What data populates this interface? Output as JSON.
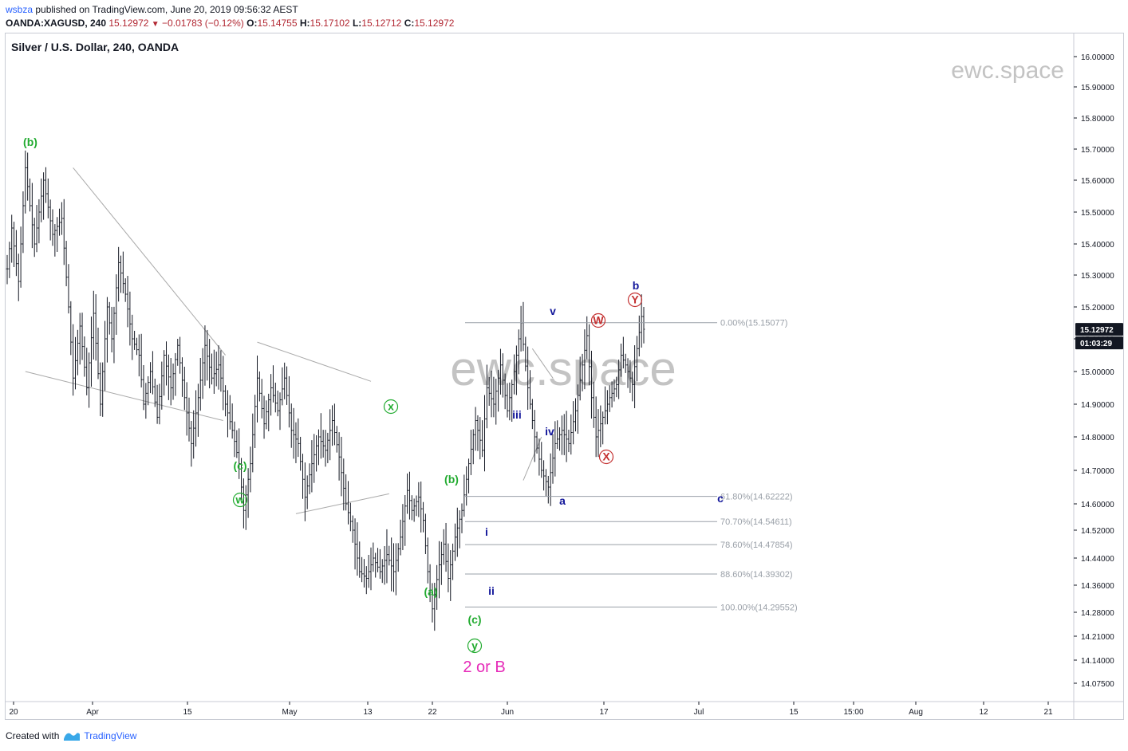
{
  "publish": {
    "user": "wsbza",
    "text": "published on TradingView.com, June 20, 2019 09:56:32 AEST"
  },
  "ohlc": {
    "symbol": "OANDA:XAGUSD, 240",
    "last": "15.12972",
    "change": "−0.01783 (−0.12%)",
    "o_label": "O:",
    "o": "15.14755",
    "h_label": "H:",
    "h": "15.17102",
    "l_label": "L:",
    "l": "15.12712",
    "c_label": "C:",
    "c": "15.12972"
  },
  "footer": {
    "created_with": "Created with",
    "brand": "TradingView"
  },
  "colors": {
    "bars": "#131722",
    "green": "#22ab30",
    "navy": "#12169a",
    "red": "#c43131",
    "magenta": "#e62ab8",
    "fib": "#9aa0a8",
    "tag_bg": "#131722",
    "trend": "#a9a9a9",
    "watermark": "#c3c3c3"
  },
  "chart_data": {
    "type": "bar",
    "title": "Silver / U.S. Dollar, 240, OANDA",
    "watermark_small": "ewc.space",
    "watermark_big": "ewc.space",
    "ylim": [
      14.02,
      16.06
    ],
    "y_ticks": [
      "16.00000",
      "15.90000",
      "15.80000",
      "15.70000",
      "15.60000",
      "15.50000",
      "15.40000",
      "15.30000",
      "15.20000",
      "15.10000",
      "15.00000",
      "14.90000",
      "14.80000",
      "14.70000",
      "14.60000",
      "14.52000",
      "14.44000",
      "14.36000",
      "14.28000",
      "14.21000",
      "14.14000",
      "14.07500"
    ],
    "x_ticks": [
      "20",
      "Apr",
      "15",
      "May",
      "13",
      "22",
      "Jun",
      "17",
      "Jul",
      "15",
      "15:00",
      "Aug",
      "12",
      "21"
    ],
    "last_price_tag": "15.12972",
    "countdown_tag": "01:03:29",
    "fib_levels": [
      {
        "label": "0.00%(15.15077)",
        "value": 15.15077
      },
      {
        "label": "61.80%(14.62222)",
        "value": 14.62222
      },
      {
        "label": "70.70%(14.54611)",
        "value": 14.54611
      },
      {
        "label": "78.60%(14.47854)",
        "value": 14.47854
      },
      {
        "label": "88.60%(14.39302)",
        "value": 14.39302
      },
      {
        "label": "100.00%(14.29552)",
        "value": 14.29552
      }
    ],
    "wave_labels": {
      "green": [
        "(b)",
        "(c)",
        "(b)",
        "(a)",
        "(c)"
      ],
      "green_circled": [
        "w",
        "x",
        "y"
      ],
      "navy": [
        "v",
        "iii",
        "iv",
        "i",
        "ii",
        "a",
        "b",
        "c"
      ],
      "red_circled": [
        "W",
        "X",
        "Y"
      ],
      "scenario": "2 or B"
    },
    "pivots": [
      [
        0,
        15.32
      ],
      [
        2,
        15.45
      ],
      [
        5,
        15.28
      ],
      [
        8,
        15.64
      ],
      [
        12,
        15.4
      ],
      [
        16,
        15.6
      ],
      [
        20,
        15.43
      ],
      [
        24,
        15.48
      ],
      [
        27,
        15.2
      ],
      [
        29,
        14.98
      ],
      [
        32,
        15.14
      ],
      [
        35,
        14.95
      ],
      [
        38,
        15.18
      ],
      [
        41,
        14.9
      ],
      [
        44,
        15.2
      ],
      [
        46,
        15.1
      ],
      [
        49,
        15.34
      ],
      [
        52,
        15.24
      ],
      [
        55,
        15.1
      ],
      [
        58,
        15.05
      ],
      [
        60,
        14.9
      ],
      [
        63,
        15.0
      ],
      [
        66,
        14.86
      ],
      [
        69,
        15.05
      ],
      [
        72,
        14.95
      ],
      [
        75,
        15.08
      ],
      [
        78,
        14.92
      ],
      [
        81,
        14.78
      ],
      [
        84,
        14.92
      ],
      [
        87,
        15.08
      ],
      [
        90,
        14.98
      ],
      [
        93,
        15.02
      ],
      [
        96,
        14.9
      ],
      [
        99,
        14.82
      ],
      [
        102,
        14.72
      ],
      [
        104,
        14.58
      ],
      [
        107,
        14.72
      ],
      [
        110,
        14.98
      ],
      [
        113,
        14.84
      ],
      [
        116,
        14.95
      ],
      [
        119,
        14.88
      ],
      [
        122,
        14.98
      ],
      [
        125,
        14.82
      ],
      [
        128,
        14.78
      ],
      [
        131,
        14.62
      ],
      [
        134,
        14.72
      ],
      [
        137,
        14.8
      ],
      [
        140,
        14.76
      ],
      [
        143,
        14.85
      ],
      [
        146,
        14.74
      ],
      [
        149,
        14.6
      ],
      [
        152,
        14.52
      ],
      [
        155,
        14.4
      ],
      [
        158,
        14.38
      ],
      [
        161,
        14.44
      ],
      [
        164,
        14.4
      ],
      [
        167,
        14.45
      ],
      [
        170,
        14.4
      ],
      [
        173,
        14.5
      ],
      [
        176,
        14.64
      ],
      [
        178,
        14.58
      ],
      [
        181,
        14.62
      ],
      [
        183,
        14.55
      ],
      [
        185,
        14.4
      ],
      [
        187,
        14.29
      ],
      [
        190,
        14.42
      ],
      [
        192,
        14.48
      ],
      [
        194,
        14.38
      ],
      [
        197,
        14.5
      ],
      [
        200,
        14.58
      ],
      [
        203,
        14.72
      ],
      [
        206,
        14.85
      ],
      [
        209,
        14.76
      ],
      [
        211,
        14.95
      ],
      [
        214,
        14.9
      ],
      [
        217,
        15.02
      ],
      [
        220,
        14.88
      ],
      [
        223,
        15.0
      ],
      [
        226,
        15.15
      ],
      [
        229,
        14.95
      ],
      [
        232,
        14.8
      ],
      [
        235,
        14.7
      ],
      [
        238,
        14.65
      ],
      [
        241,
        14.78
      ],
      [
        244,
        14.82
      ],
      [
        247,
        14.78
      ],
      [
        250,
        14.88
      ],
      [
        253,
        15.02
      ],
      [
        255,
        15.11
      ],
      [
        257,
        14.92
      ],
      [
        259,
        14.8
      ],
      [
        262,
        14.86
      ],
      [
        265,
        14.92
      ],
      [
        268,
        14.96
      ],
      [
        270,
        15.05
      ],
      [
        272,
        15.02
      ],
      [
        275,
        14.96
      ],
      [
        277,
        15.07
      ],
      [
        279,
        15.17
      ],
      [
        280,
        15.13
      ]
    ]
  }
}
